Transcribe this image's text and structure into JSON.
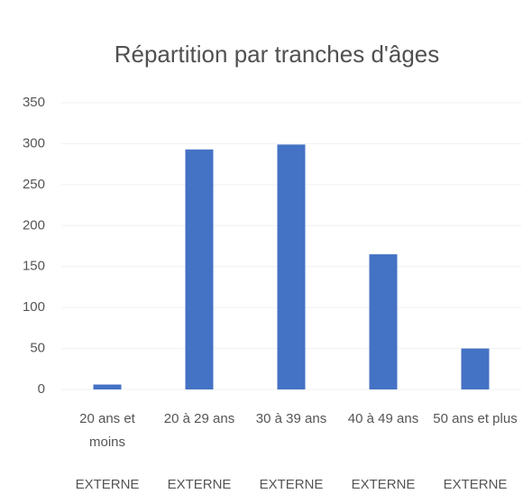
{
  "chart_data": {
    "type": "bar",
    "title": "Répartition par tranches d'âges",
    "categories": [
      "20 ans et moins",
      "20 à 29 ans",
      "30 à 39 ans",
      "40 à 49 ans",
      "50 ans et plus"
    ],
    "category_groups": [
      "EXTERNE",
      "EXTERNE",
      "EXTERNE",
      "EXTERNE",
      "EXTERNE"
    ],
    "values": [
      6,
      293,
      299,
      165,
      50
    ],
    "color": "#4472c4",
    "ylim": [
      0,
      350
    ],
    "yticks": [
      0,
      50,
      100,
      150,
      200,
      250,
      300,
      350
    ],
    "grid": true
  }
}
